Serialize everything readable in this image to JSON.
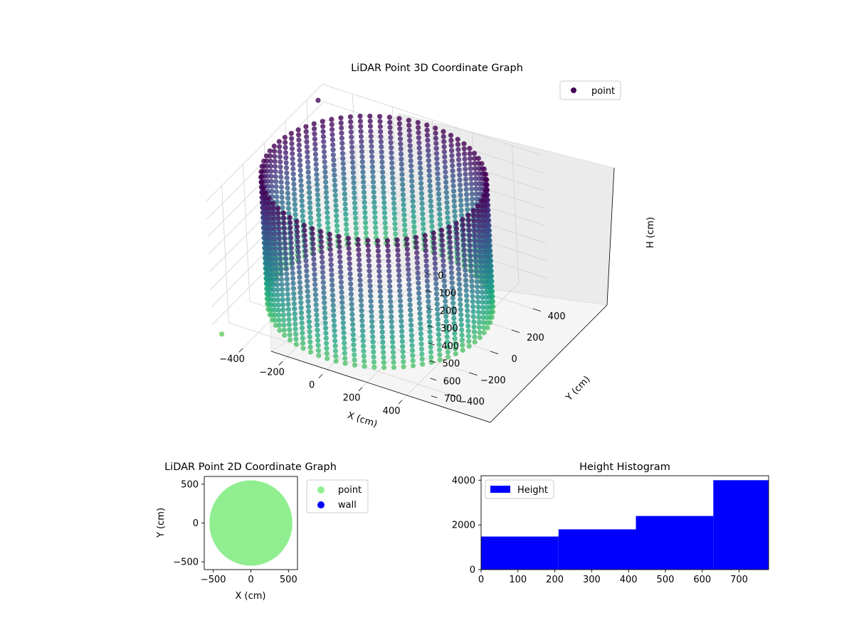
{
  "chart_data": [
    {
      "type": "scatter3d",
      "title": "LiDAR Point 3D Coordinate Graph",
      "xlabel": "X (cm)",
      "ylabel": "Y (cm)",
      "zlabel": "H (cm)",
      "xticks": [
        "−400",
        "−200",
        "0",
        "200",
        "400"
      ],
      "yticks": [
        "−400",
        "−200",
        "0",
        "200",
        "400"
      ],
      "zticks": [
        "0",
        "100",
        "200",
        "300",
        "400",
        "500",
        "600",
        "700"
      ],
      "xlim": [
        -550,
        550
      ],
      "ylim": [
        -550,
        550
      ],
      "zlim": [
        0,
        780
      ],
      "z_inverted": true,
      "legend": [
        "point"
      ],
      "legend_position": "upper-right",
      "colormap": "viridis",
      "colors": {
        "point_marker": "#440154"
      },
      "grid": true,
      "series": [
        {
          "name": "point",
          "description_shape": "cylindrical wall",
          "radius": 500,
          "height_range": [
            0,
            720
          ],
          "outliers": [
            {
              "x": -520,
              "y": 450,
              "h": 20
            },
            {
              "x": -520,
              "y": -520,
              "h": 760
            }
          ]
        }
      ]
    },
    {
      "type": "scatter",
      "title": "LiDAR Point 2D Coordinate Graph",
      "xlabel": "X (cm)",
      "ylabel": "Y (cm)",
      "xticks": [
        "−500",
        "0",
        "500"
      ],
      "yticks": [
        "−500",
        "0",
        "500"
      ],
      "xlim": [
        -620,
        620
      ],
      "ylim": [
        -600,
        600
      ],
      "legend": [
        "point",
        "wall"
      ],
      "legend_position": "outside-right",
      "colors": {
        "point": "#90ee90",
        "wall": "#0000ff"
      },
      "series": [
        {
          "name": "point",
          "shape": "filled disc",
          "radius": 510
        },
        {
          "name": "wall"
        }
      ]
    },
    {
      "type": "histogram",
      "title": "Height Histogram",
      "xticks": [
        "0",
        "100",
        "200",
        "300",
        "400",
        "500",
        "600",
        "700"
      ],
      "yticks": [
        "0",
        "2000",
        "4000"
      ],
      "xlim": [
        0,
        780
      ],
      "ylim": [
        0,
        4200
      ],
      "legend": [
        "Height"
      ],
      "legend_position": "upper-left",
      "colors": {
        "bar": "#0000ff"
      },
      "bins": [
        {
          "x0": 0,
          "x1": 210,
          "count": 1480
        },
        {
          "x0": 210,
          "x1": 420,
          "count": 1800
        },
        {
          "x0": 420,
          "x1": 630,
          "count": 2400
        },
        {
          "x0": 630,
          "x1": 780,
          "count": 4000
        }
      ]
    }
  ]
}
